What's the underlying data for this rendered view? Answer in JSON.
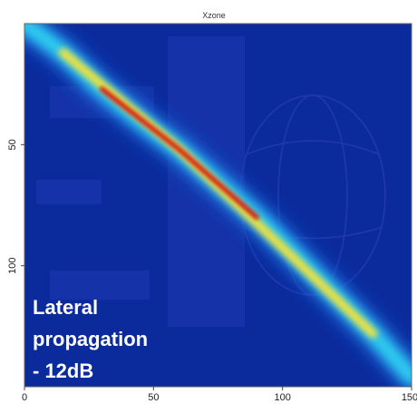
{
  "chart_data": {
    "type": "heatmap",
    "title": "Xzone",
    "xlabel": "",
    "ylabel": "",
    "xlim": [
      0,
      150
    ],
    "ylim": [
      0,
      150
    ],
    "y_inverted": true,
    "x_ticks": [
      "0",
      "50",
      "100",
      "150"
    ],
    "y_ticks": [
      "50",
      "100"
    ],
    "x_tick_values": [
      0,
      50,
      100,
      150
    ],
    "y_tick_values": [
      50,
      100
    ],
    "colormap": "jet",
    "background_color": "#0b2a9c",
    "annotation_lines": [
      "Lateral",
      "propagation",
      "- 12dB"
    ],
    "ridge": {
      "description_points": [
        {
          "x": 0,
          "y": 0,
          "intensity": 0.15
        },
        {
          "x": 15,
          "y": 12,
          "intensity": 0.3
        },
        {
          "x": 30,
          "y": 27,
          "intensity": 0.55
        },
        {
          "x": 45,
          "y": 40,
          "intensity": 0.95
        },
        {
          "x": 60,
          "y": 52,
          "intensity": 1.0
        },
        {
          "x": 75,
          "y": 66,
          "intensity": 0.8
        },
        {
          "x": 90,
          "y": 80,
          "intensity": 0.6
        },
        {
          "x": 105,
          "y": 96,
          "intensity": 0.45
        },
        {
          "x": 120,
          "y": 112,
          "intensity": 0.3
        },
        {
          "x": 135,
          "y": 128,
          "intensity": 0.2
        },
        {
          "x": 150,
          "y": 146,
          "intensity": 0.1
        }
      ]
    }
  }
}
